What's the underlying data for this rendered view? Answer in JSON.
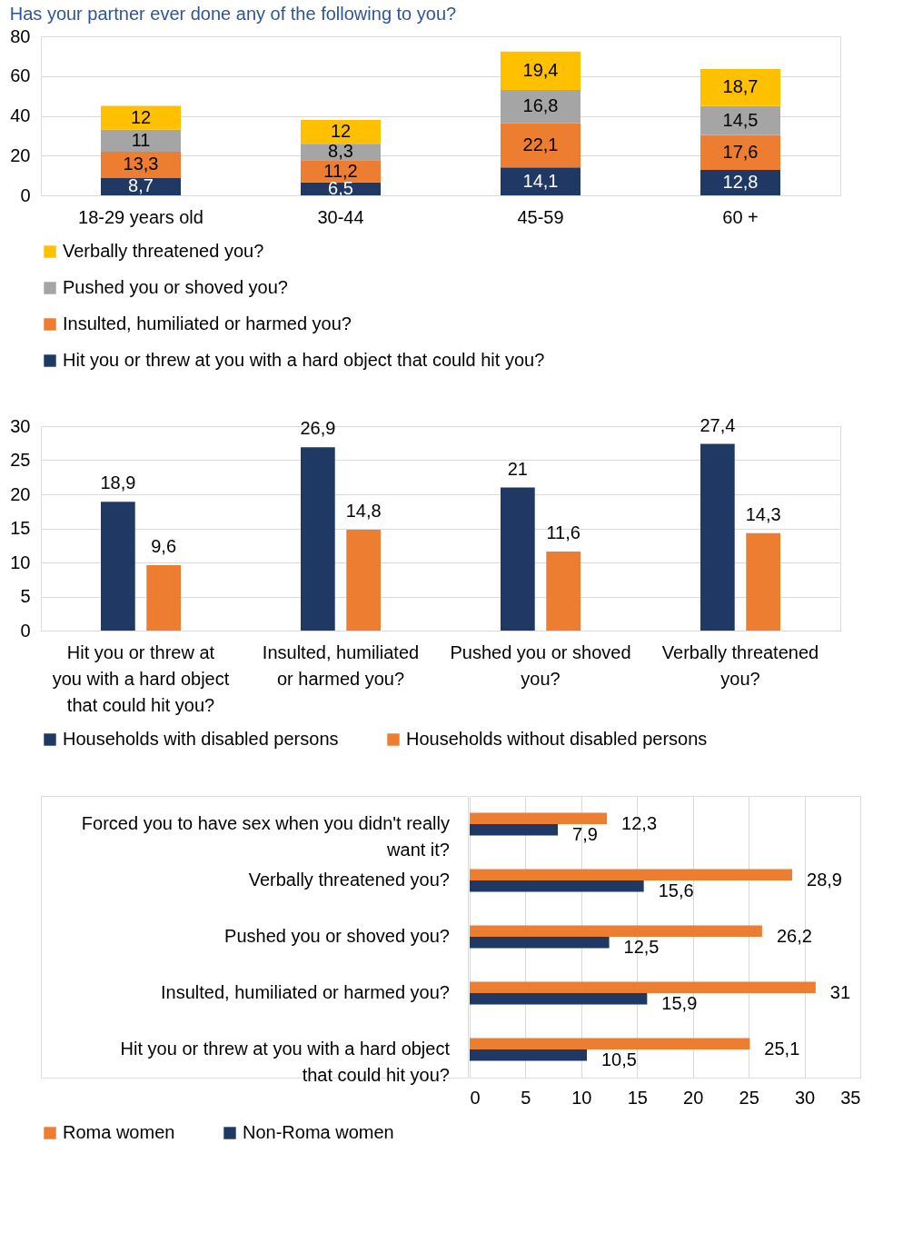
{
  "chart_data": [
    {
      "type": "bar",
      "title": "Has your partner ever done any of the following to you?",
      "stacked": true,
      "categories": [
        "18-29 years old",
        "30-44",
        "45-59",
        "60 +"
      ],
      "ylim": [
        0,
        80
      ],
      "yticks": [
        0,
        20,
        40,
        60,
        80
      ],
      "grid": "y",
      "legend": "bottom",
      "series": [
        {
          "name": "Hit you or threw at you with a hard object that could hit you?",
          "color": "#203864",
          "values": [
            8.7,
            6.5,
            14.1,
            12.8
          ],
          "value_labels": [
            "8,7",
            "6,5",
            "14,1",
            "12,8"
          ]
        },
        {
          "name": "Insulted, humiliated or harmed you?",
          "color": "#ed7d31",
          "values": [
            13.3,
            11.2,
            22.1,
            17.6
          ],
          "value_labels": [
            "13,3",
            "11,2",
            "22,1",
            "17,6"
          ]
        },
        {
          "name": "Pushed you or shoved you?",
          "color": "#a5a5a5",
          "values": [
            11,
            8.3,
            16.8,
            14.5
          ],
          "value_labels": [
            "11",
            "8,3",
            "16,8",
            "14,5"
          ]
        },
        {
          "name": "Verbally threatened you?",
          "color": "#ffc000",
          "values": [
            12,
            12,
            19.4,
            18.7
          ],
          "value_labels": [
            "12",
            "12",
            "19,4",
            "18,7"
          ]
        }
      ]
    },
    {
      "type": "bar",
      "categories": [
        "Hit you or threw at you with a hard object that could hit you?",
        "Insulted, humiliated or harmed you?",
        "Pushed you or shoved you?",
        "Verbally threatened you?"
      ],
      "ylim": [
        0,
        30
      ],
      "yticks": [
        0,
        5,
        10,
        15,
        20,
        25,
        30
      ],
      "grid": "y",
      "legend": "bottom",
      "series": [
        {
          "name": "Households with disabled persons",
          "color": "#203864",
          "values": [
            18.9,
            26.9,
            21,
            27.4
          ],
          "value_labels": [
            "18,9",
            "26,9",
            "21",
            "27,4"
          ]
        },
        {
          "name": "Households without disabled persons",
          "color": "#ed7d31",
          "values": [
            9.6,
            14.8,
            11.6,
            14.3
          ],
          "value_labels": [
            "9,6",
            "14,8",
            "11,6",
            "14,3"
          ]
        }
      ]
    },
    {
      "type": "bar",
      "orientation": "horizontal",
      "categories": [
        "Forced you to have sex when you didn't really want it?",
        "Verbally threatened you?",
        "Pushed you or shoved you?",
        "Insulted, humiliated or harmed you?",
        "Hit you or threw at you with a hard object that could hit you?"
      ],
      "xlim": [
        0,
        35
      ],
      "xticks": [
        0,
        5,
        10,
        15,
        20,
        25,
        30,
        35
      ],
      "grid": "x",
      "legend": "bottom",
      "series": [
        {
          "name": "Roma women",
          "color": "#ed7d31",
          "values": [
            12.3,
            28.9,
            26.2,
            31,
            25.1
          ],
          "value_labels": [
            "12,3",
            "28,9",
            "26,2",
            "31",
            "25,1"
          ]
        },
        {
          "name": "Non-Roma women",
          "color": "#203864",
          "values": [
            7.9,
            15.6,
            12.5,
            15.9,
            10.5
          ],
          "value_labels": [
            "7,9",
            "15,6",
            "12,5",
            "15,9",
            "10,5"
          ]
        }
      ]
    }
  ]
}
